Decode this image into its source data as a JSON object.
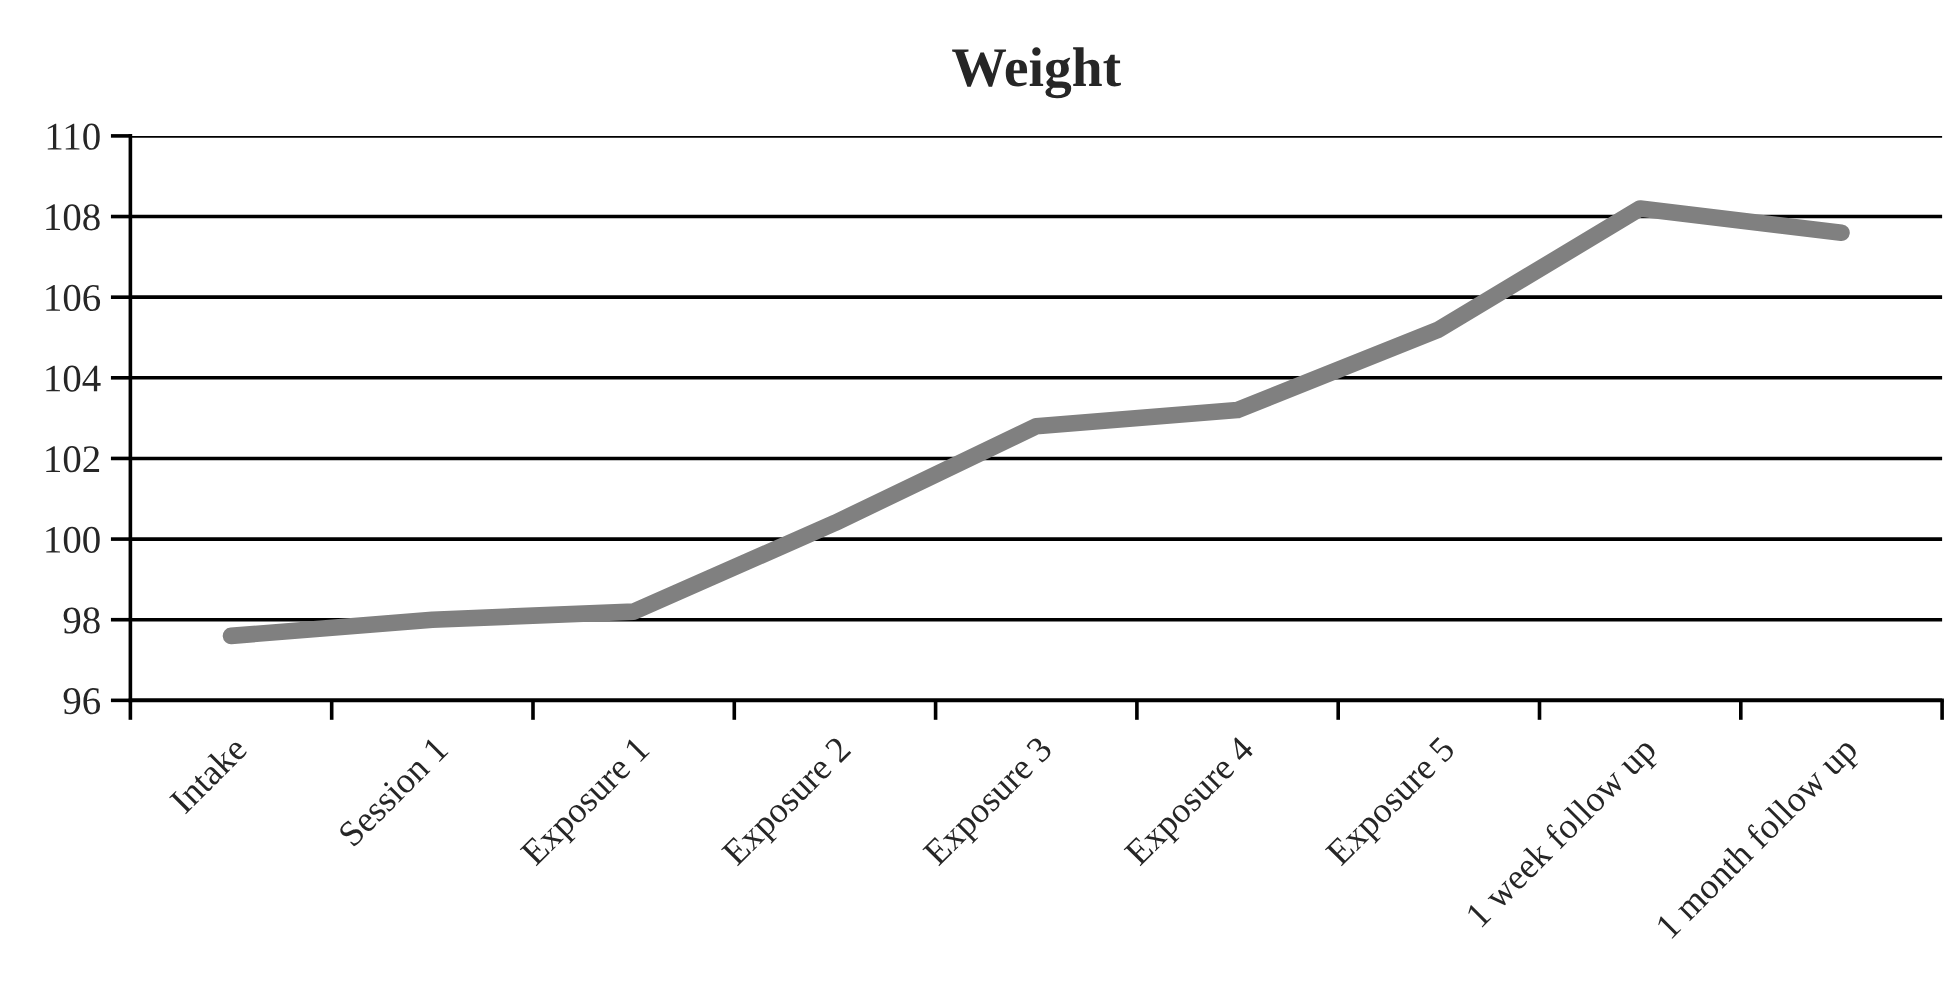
{
  "chart_data": {
    "type": "line",
    "title": "Weight",
    "categories": [
      "Intake",
      "Session 1",
      "Exposure 1",
      "Exposure 2",
      "Exposure 3",
      "Exposure 4",
      "Exposure 5",
      "1 week follow up",
      "1 month follow up"
    ],
    "series": [
      {
        "color": "#808080",
        "values": [
          97.6,
          98.0,
          98.2,
          100.4,
          102.8,
          103.2,
          105.2,
          108.2,
          107.6
        ]
      }
    ],
    "ylim": [
      96,
      110
    ],
    "yticks": [
      96,
      98,
      100,
      102,
      104,
      106,
      108,
      110
    ],
    "grid": "y",
    "marker": "none",
    "line_style": "solid",
    "legend": false
  }
}
